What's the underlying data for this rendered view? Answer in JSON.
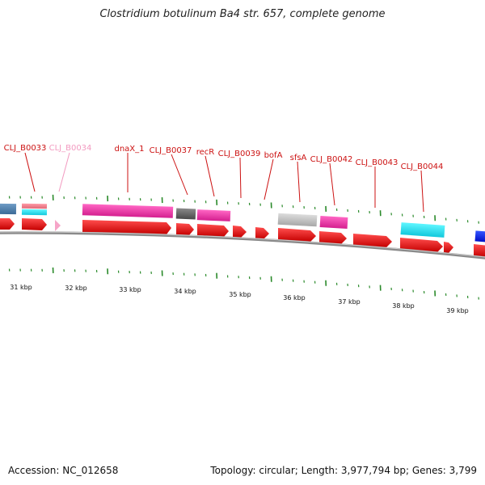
{
  "title": "Clostridium botulinum Ba4 str. 657, complete genome",
  "accession": "Accession: NC_012658",
  "summary": "Topology: circular; Length: 3,977,794 bp; Genes: 3,799",
  "scale_labels": [
    "31 kbp",
    "32 kbp",
    "33 kbp",
    "34 kbp",
    "35 kbp",
    "36 kbp",
    "37 kbp",
    "38 kbp",
    "39 kbp"
  ],
  "gene_labels": [
    {
      "text": "CLJ_B0033",
      "color": "#cc1111"
    },
    {
      "text": "CLJ_B0034",
      "color": "#f29ac0"
    },
    {
      "text": "dnaX_1",
      "color": "#cc1111"
    },
    {
      "text": "CLJ_B0037",
      "color": "#cc1111"
    },
    {
      "text": "recR",
      "color": "#cc1111"
    },
    {
      "text": "CLJ_B0039",
      "color": "#cc1111"
    },
    {
      "text": "bofA",
      "color": "#cc1111"
    },
    {
      "text": "sfsA",
      "color": "#cc1111"
    },
    {
      "text": "CLJ_B0042",
      "color": "#cc1111"
    },
    {
      "text": "CLJ_B0043",
      "color": "#cc1111"
    },
    {
      "text": "CLJ_B0044",
      "color": "#cc1111"
    }
  ],
  "colors": {
    "cds": "#ee1111",
    "backbone": "#888888",
    "tick": "#2a8a2a"
  }
}
